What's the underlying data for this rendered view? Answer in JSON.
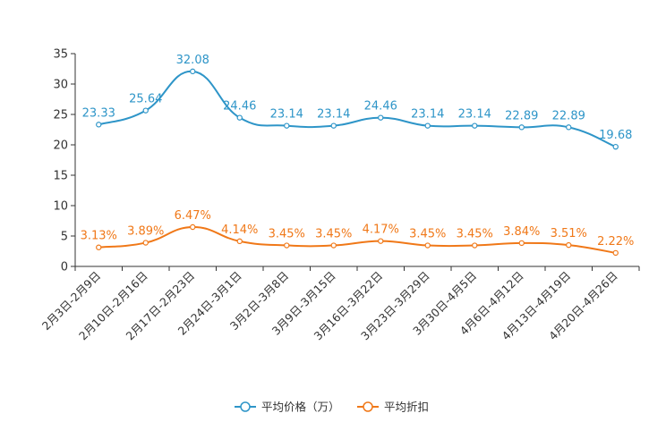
{
  "chart_data": {
    "type": "line",
    "title": "",
    "xlabel": "",
    "ylabel": "",
    "ylim": [
      0,
      35
    ],
    "yticks": [
      0,
      5,
      10,
      15,
      20,
      25,
      30,
      35
    ],
    "grid": false,
    "legend_position": "bottom-center",
    "categories": [
      "2月3日-2月9日",
      "2月10日-2月16日",
      "2月17日-2月23日",
      "2月24日-3月1日",
      "3月2日-3月8日",
      "3月9日-3月15日",
      "3月16日-3月22日",
      "3月23日-3月29日",
      "3月30日-4月5日",
      "4月6日-4月12日",
      "4月13日-4月19日",
      "4月20日-4月26日"
    ],
    "series": [
      {
        "name": "平均价格（万）",
        "color": "#2e95c8",
        "values": [
          23.33,
          25.64,
          32.08,
          24.46,
          23.14,
          23.14,
          24.46,
          23.14,
          23.14,
          22.89,
          22.89,
          19.68
        ],
        "labels": [
          "23.33",
          "25.64",
          "32.08",
          "24.46",
          "23.14",
          "23.14",
          "24.46",
          "23.14",
          "23.14",
          "22.89",
          "22.89",
          "19.68"
        ]
      },
      {
        "name": "平均折扣",
        "color": "#f07818",
        "values": [
          3.13,
          3.89,
          6.47,
          4.14,
          3.45,
          3.45,
          4.17,
          3.45,
          3.45,
          3.84,
          3.51,
          2.22
        ],
        "labels": [
          "3.13%",
          "3.89%",
          "6.47%",
          "4.14%",
          "3.45%",
          "3.45%",
          "4.17%",
          "3.45%",
          "3.45%",
          "3.84%",
          "3.51%",
          "2.22%"
        ]
      }
    ]
  }
}
